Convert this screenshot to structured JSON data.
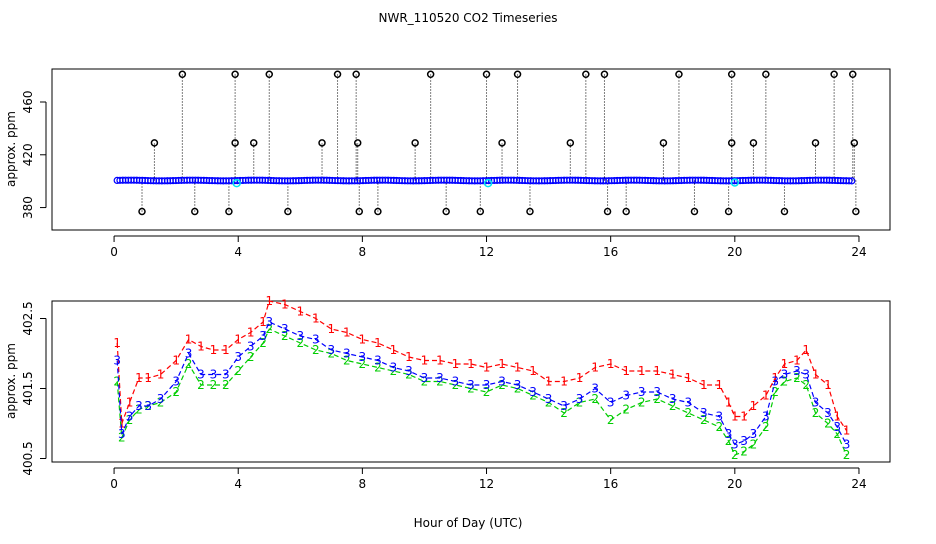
{
  "chart_data": [
    {
      "type": "scatter",
      "title": "NWR_110520  CO2 Timeseries",
      "xlabel": "",
      "ylabel": "approx. ppm",
      "xlim": [
        -2,
        25
      ],
      "ylim": [
        363,
        485
      ],
      "x_ticks": [
        0,
        4,
        8,
        12,
        16,
        20,
        24
      ],
      "y_ticks": [
        380,
        420,
        460
      ],
      "grid": false,
      "baseline_series": {
        "name": "",
        "color": "#0000ff",
        "x_start": 0.1,
        "x_end": 23.8,
        "value": 400.5,
        "cyan_points": [
          [
            3.95,
            398.5
          ],
          [
            12.05,
            398.5
          ],
          [
            20.0,
            399.0
          ]
        ]
      },
      "spikes_high": [
        [
          2.2,
          481
        ],
        [
          3.9,
          481
        ],
        [
          5.0,
          481
        ],
        [
          7.2,
          481
        ],
        [
          7.8,
          481
        ],
        [
          10.2,
          481
        ],
        [
          12.0,
          481
        ],
        [
          13.0,
          481
        ],
        [
          15.2,
          481
        ],
        [
          15.8,
          481
        ],
        [
          18.2,
          481
        ],
        [
          19.9,
          481
        ],
        [
          21.0,
          481
        ],
        [
          23.2,
          481
        ],
        [
          23.8,
          481
        ],
        [
          1.3,
          429
        ],
        [
          3.9,
          429
        ],
        [
          4.5,
          429
        ],
        [
          6.7,
          429
        ],
        [
          7.85,
          429
        ],
        [
          9.7,
          429
        ],
        [
          12.5,
          429
        ],
        [
          14.7,
          429
        ],
        [
          17.7,
          429
        ],
        [
          19.9,
          429
        ],
        [
          20.6,
          429
        ],
        [
          22.6,
          429
        ],
        [
          23.85,
          429
        ]
      ],
      "spikes_low": [
        [
          0.9,
          377
        ],
        [
          2.6,
          377
        ],
        [
          3.7,
          377
        ],
        [
          5.6,
          377
        ],
        [
          7.9,
          377
        ],
        [
          8.5,
          377
        ],
        [
          10.7,
          377
        ],
        [
          11.8,
          377
        ],
        [
          13.4,
          377
        ],
        [
          15.9,
          377
        ],
        [
          16.5,
          377
        ],
        [
          18.7,
          377
        ],
        [
          19.8,
          377
        ],
        [
          21.6,
          377
        ],
        [
          23.9,
          377
        ]
      ],
      "spike_base": 400.5
    },
    {
      "type": "line",
      "title": "",
      "xlabel": "Hour of Day (UTC)",
      "ylabel": "approx. ppm",
      "xlim": [
        -2,
        25
      ],
      "ylim": [
        400.45,
        402.75
      ],
      "x_ticks": [
        0,
        4,
        8,
        12,
        16,
        20,
        24
      ],
      "y_ticks": [
        400.5,
        401.5,
        402.5
      ],
      "grid": false,
      "x": [
        0.1,
        0.25,
        0.5,
        0.8,
        1.1,
        1.5,
        2.0,
        2.4,
        2.8,
        3.2,
        3.6,
        4.0,
        4.4,
        4.8,
        5.0,
        5.5,
        6.0,
        6.5,
        7.0,
        7.5,
        8.0,
        8.5,
        9.0,
        9.5,
        10.0,
        10.5,
        11.0,
        11.5,
        12.0,
        12.5,
        13.0,
        13.5,
        14.0,
        14.5,
        15.0,
        15.5,
        16.0,
        16.5,
        17.0,
        17.5,
        18.0,
        18.5,
        19.0,
        19.5,
        19.8,
        20.0,
        20.3,
        20.6,
        21.0,
        21.3,
        21.6,
        22.0,
        22.3,
        22.6,
        23.0,
        23.3,
        23.6
      ],
      "series": [
        {
          "name": "1",
          "color": "#ff0000",
          "values": [
            402.15,
            401.0,
            401.3,
            401.65,
            401.65,
            401.7,
            401.9,
            402.2,
            402.1,
            402.05,
            402.05,
            402.2,
            402.3,
            402.45,
            402.75,
            402.7,
            402.6,
            402.5,
            402.35,
            402.3,
            402.2,
            402.15,
            402.05,
            401.95,
            401.9,
            401.9,
            401.85,
            401.85,
            401.8,
            401.85,
            401.8,
            401.75,
            401.6,
            401.6,
            401.65,
            401.8,
            401.85,
            401.75,
            401.75,
            401.75,
            401.7,
            401.65,
            401.55,
            401.55,
            401.3,
            401.1,
            401.1,
            401.25,
            401.4,
            401.65,
            401.85,
            401.9,
            402.05,
            401.7,
            401.55,
            401.1,
            400.9
          ]
        },
        {
          "name": "2",
          "color": "#00cd00",
          "values": [
            401.6,
            400.8,
            401.05,
            401.2,
            401.25,
            401.3,
            401.45,
            401.85,
            401.55,
            401.55,
            401.55,
            401.75,
            401.95,
            402.15,
            402.35,
            402.25,
            402.15,
            402.05,
            402.0,
            401.9,
            401.85,
            401.8,
            401.75,
            401.7,
            401.6,
            401.6,
            401.55,
            401.5,
            401.45,
            401.55,
            401.5,
            401.4,
            401.3,
            401.15,
            401.3,
            401.35,
            401.05,
            401.2,
            401.3,
            401.35,
            401.25,
            401.15,
            401.05,
            400.95,
            400.75,
            400.55,
            400.6,
            400.7,
            400.95,
            401.45,
            401.6,
            401.65,
            401.55,
            401.15,
            401.0,
            400.85,
            400.55
          ]
        },
        {
          "name": "3",
          "color": "#0000ff",
          "values": [
            401.9,
            400.85,
            401.1,
            401.25,
            401.25,
            401.35,
            401.6,
            402.0,
            401.7,
            401.7,
            401.7,
            401.95,
            402.1,
            402.25,
            402.45,
            402.35,
            402.25,
            402.2,
            402.05,
            402.0,
            401.95,
            401.9,
            401.8,
            401.75,
            401.65,
            401.65,
            401.6,
            401.55,
            401.55,
            401.6,
            401.55,
            401.45,
            401.35,
            401.25,
            401.35,
            401.5,
            401.3,
            401.4,
            401.45,
            401.45,
            401.35,
            401.3,
            401.15,
            401.1,
            400.85,
            400.7,
            400.75,
            400.85,
            401.1,
            401.6,
            401.7,
            401.75,
            401.7,
            401.3,
            401.15,
            400.95,
            400.7
          ]
        }
      ]
    }
  ]
}
